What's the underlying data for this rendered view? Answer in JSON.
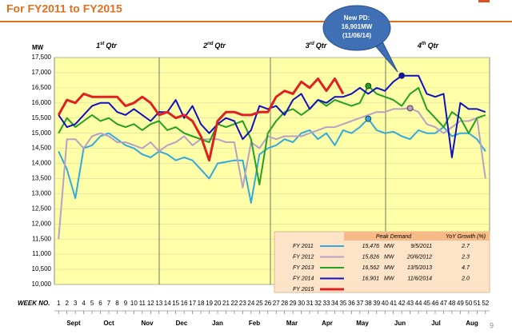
{
  "chart_data": {
    "type": "line",
    "title": "For FY2011 to FY2015",
    "y_label": "MW",
    "x_label": "WEEK NO.",
    "page_number": "9",
    "x": [
      1,
      2,
      3,
      4,
      5,
      6,
      7,
      8,
      9,
      10,
      11,
      12,
      13,
      14,
      15,
      16,
      17,
      18,
      19,
      20,
      21,
      22,
      23,
      24,
      25,
      26,
      27,
      28,
      29,
      30,
      31,
      32,
      33,
      34,
      35,
      36,
      37,
      38,
      39,
      40,
      41,
      42,
      43,
      44,
      45,
      46,
      47,
      48,
      49,
      50,
      51,
      52
    ],
    "xlim": [
      0.5,
      52.5
    ],
    "ylim": [
      10000,
      17500
    ],
    "yticks": [
      {
        "value": 10000,
        "label": "10,000"
      },
      {
        "value": 10500,
        "label": "10,500"
      },
      {
        "value": 11000,
        "label": "11,000"
      },
      {
        "value": 11500,
        "label": "11,500"
      },
      {
        "value": 12000,
        "label": "12,000"
      },
      {
        "value": 12500,
        "label": "12,500"
      },
      {
        "value": 13000,
        "label": "13,000"
      },
      {
        "value": 13500,
        "label": "13,500"
      },
      {
        "value": 14000,
        "label": "14,000"
      },
      {
        "value": 14500,
        "label": "14,500"
      },
      {
        "value": 15000,
        "label": "15,000"
      },
      {
        "value": 15500,
        "label": "15,500"
      },
      {
        "value": 16000,
        "label": "16,000"
      },
      {
        "value": 16500,
        "label": "16,500"
      },
      {
        "value": 17000,
        "label": "17,000"
      },
      {
        "value": 17500,
        "label": "17,500"
      }
    ],
    "grid": true,
    "months": [
      "Sept",
      "Oct",
      "Nov",
      "Dec",
      "Jan",
      "Feb",
      "Mar",
      "Apr",
      "May",
      "Jun",
      "Jul",
      "Aug"
    ],
    "quarters": [
      {
        "n": "1",
        "sup": "st",
        "text": "Qtr"
      },
      {
        "n": "2",
        "sup": "nd",
        "text": "Qtr"
      },
      {
        "n": "3",
        "sup": "rd",
        "text": "Qtr"
      },
      {
        "n": "4",
        "sup": "th",
        "text": "Qtr"
      }
    ],
    "callout": [
      "New PD:",
      "16,901MW",
      "(11/06/14)"
    ],
    "series": [
      {
        "name": "FY 2011",
        "color": "#33aadd",
        "values": [
          14400,
          13800,
          12850,
          14500,
          14600,
          14900,
          15000,
          14800,
          14600,
          14500,
          14300,
          14200,
          14400,
          14300,
          14100,
          14200,
          14100,
          13800,
          13500,
          14000,
          14050,
          14100,
          14100,
          12700,
          14300,
          14500,
          14600,
          14800,
          14700,
          15000,
          15100,
          14800,
          15000,
          14600,
          15100,
          15000,
          15200,
          15476,
          15100,
          15000,
          15050,
          14900,
          14800,
          15100,
          15000,
          15000,
          15200,
          14900,
          15000,
          15000,
          14800,
          14400
        ]
      },
      {
        "name": "FY 2012",
        "color": "#b8a0c8",
        "values": [
          11500,
          14800,
          14800,
          14500,
          14900,
          15000,
          14900,
          14700,
          14700,
          14600,
          14500,
          14700,
          14400,
          14600,
          14700,
          14900,
          14600,
          14800,
          14800,
          14800,
          14700,
          14700,
          13200,
          14700,
          14500,
          14900,
          14800,
          14900,
          14900,
          14900,
          15000,
          15100,
          15200,
          15200,
          15300,
          15400,
          15500,
          15600,
          15700,
          15700,
          15800,
          15800,
          15826,
          15700,
          15300,
          15200,
          15000,
          15200,
          15400,
          15400,
          15500,
          13500
        ]
      },
      {
        "name": "FY 2013",
        "color": "#22a022",
        "values": [
          15000,
          15500,
          15200,
          15400,
          15600,
          15400,
          15500,
          15300,
          15200,
          15300,
          15100,
          15300,
          15400,
          15100,
          15200,
          15000,
          14900,
          14800,
          14700,
          15300,
          15200,
          15300,
          15400,
          14800,
          13300,
          15000,
          15400,
          15700,
          15800,
          15600,
          15800,
          16100,
          15900,
          16100,
          16000,
          15900,
          16000,
          16562,
          16300,
          16200,
          16100,
          15900,
          16300,
          16500,
          15800,
          15500,
          15200,
          15700,
          15500,
          15000,
          15500,
          15600
        ]
      },
      {
        "name": "FY 2014",
        "color": "#1010c0",
        "values": [
          15600,
          15200,
          15300,
          15600,
          15900,
          16000,
          16000,
          15700,
          15600,
          15800,
          15600,
          15400,
          15700,
          15700,
          16100,
          15500,
          15900,
          15300,
          15000,
          15300,
          15500,
          15400,
          14800,
          15100,
          15900,
          15800,
          15900,
          15600,
          16100,
          16300,
          15800,
          16100,
          16000,
          16200,
          16200,
          16300,
          16500,
          16300,
          16500,
          16400,
          16700,
          16901,
          16900,
          16900,
          16300,
          16200,
          16300,
          14200,
          16000,
          15800,
          15800,
          15700
        ]
      },
      {
        "name": "FY 2015",
        "color": "#e02020",
        "values": [
          15600,
          16100,
          16000,
          16300,
          16200,
          16200,
          16200,
          16200,
          15900,
          16000,
          16200,
          16000,
          15600,
          15700,
          15500,
          15600,
          15400,
          14900,
          14100,
          15400,
          15700,
          15700,
          15600,
          15600,
          15700,
          15700,
          16200,
          16400,
          16300,
          16700,
          16500,
          16800,
          16400,
          16800,
          16300,
          null,
          null,
          null,
          null,
          null,
          null,
          null,
          null,
          null,
          null,
          null,
          null,
          null,
          null,
          null,
          null,
          null
        ]
      }
    ],
    "table": {
      "header_peak": "Peak Demand",
      "header_growth": "YoY Growth (%)",
      "rows": [
        {
          "peak": "15,476",
          "unit": "MW",
          "date": "9/5/2011",
          "growth": "2.7"
        },
        {
          "peak": "15,826",
          "unit": "MW",
          "date": "20/6/2012",
          "growth": "2.3"
        },
        {
          "peak": "16,562",
          "unit": "MW",
          "date": "13/5/2013",
          "growth": "4.7"
        },
        {
          "peak": "16,901",
          "unit": "MW",
          "date": "11/6/2014",
          "growth": "2.0"
        }
      ]
    }
  }
}
